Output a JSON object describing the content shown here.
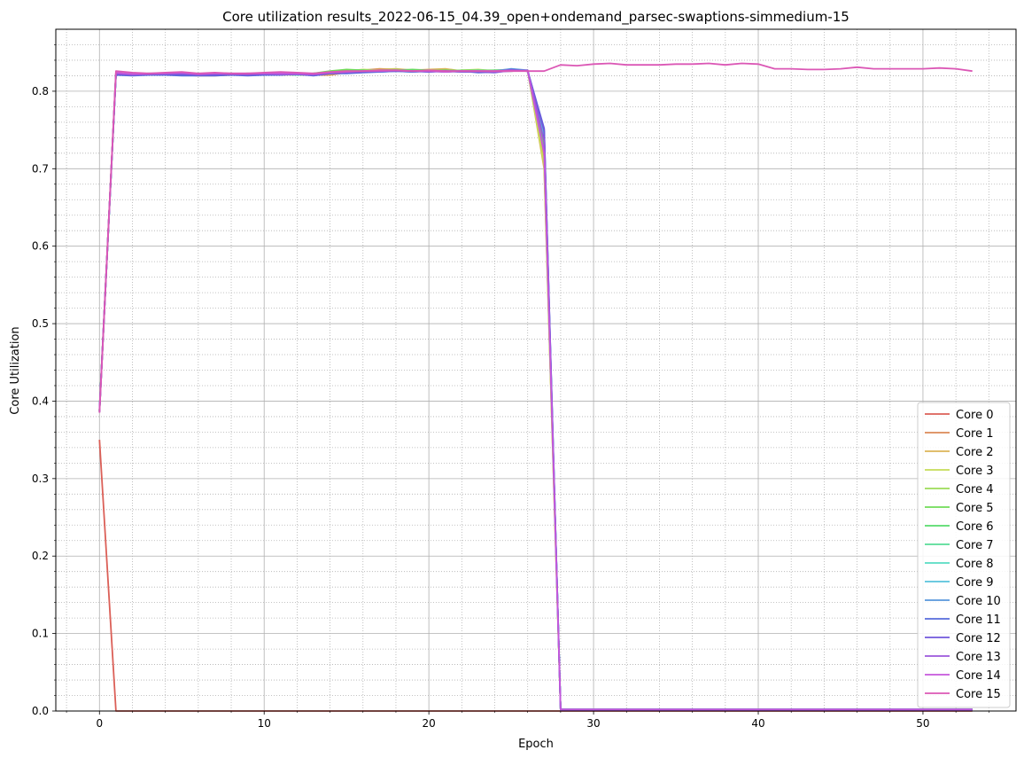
{
  "chart_data": {
    "type": "line",
    "title": "Core utilization results_2022-06-15_04.39_open+ondemand_parsec-swaptions-simmedium-15",
    "xlabel": "Epoch",
    "ylabel": "Core Utilization",
    "xlim": [
      -2.65,
      55.65
    ],
    "ylim": [
      0,
      0.88
    ],
    "xticks": [
      0,
      10,
      20,
      30,
      40,
      50
    ],
    "yticks": [
      0.0,
      0.1,
      0.2,
      0.3,
      0.4,
      0.5,
      0.6,
      0.7,
      0.8
    ],
    "grid": true,
    "minor_grid": true,
    "legend_position": "lower-right",
    "colors": [
      "#db5f57",
      "#db8a57",
      "#dbb557",
      "#c6db57",
      "#9bdb57",
      "#70db57",
      "#57db6c",
      "#57db97",
      "#57dbc2",
      "#57c2db",
      "#5797db",
      "#576cdb",
      "#7057db",
      "#9b57db",
      "#c657db",
      "#db57b5"
    ],
    "series": [
      {
        "name": "Core 0",
        "y": [
          0.35,
          0,
          0,
          0,
          0,
          0,
          0,
          0,
          0,
          0,
          0,
          0,
          0,
          0,
          0,
          0,
          0,
          0,
          0,
          0,
          0,
          0,
          0,
          0,
          0,
          0,
          0,
          0,
          0,
          0,
          0,
          0,
          0,
          0,
          0,
          0,
          0,
          0,
          0,
          0,
          0,
          0,
          0,
          0,
          0,
          0,
          0,
          0,
          0,
          0,
          0,
          0,
          0,
          0
        ]
      },
      {
        "name": "Core 1",
        "y": [
          0.388,
          0.822,
          0.821,
          0.822,
          0.823,
          0.821,
          0.82,
          0.82,
          0.821,
          0.822,
          0.823,
          0.822,
          0.821,
          0.821,
          0.821,
          0.824,
          0.827,
          0.829,
          0.828,
          0.827,
          0.826,
          0.827,
          0.826,
          0.825,
          0.825,
          0.827,
          0.826,
          0.71,
          0.002,
          0.002,
          0.002,
          0.002,
          0.002,
          0.002,
          0.002,
          0.002,
          0.002,
          0.002,
          0.002,
          0.002,
          0.002,
          0.002,
          0.002,
          0.002,
          0.002,
          0.002,
          0.002,
          0.002,
          0.002,
          0.002,
          0.002,
          0.002,
          0.002,
          0.002
        ]
      },
      {
        "name": "Core 2",
        "y": [
          0.389,
          0.824,
          0.822,
          0.821,
          0.822,
          0.823,
          0.822,
          0.821,
          0.822,
          0.823,
          0.822,
          0.823,
          0.822,
          0.823,
          0.822,
          0.826,
          0.827,
          0.828,
          0.829,
          0.827,
          0.828,
          0.829,
          0.826,
          0.827,
          0.826,
          0.826,
          0.827,
          0.7,
          0.002,
          0.002,
          0.002,
          0.002,
          0.002,
          0.002,
          0.002,
          0.002,
          0.002,
          0.002,
          0.002,
          0.002,
          0.002,
          0.002,
          0.002,
          0.002,
          0.002,
          0.002,
          0.002,
          0.002,
          0.002,
          0.002,
          0.002,
          0.002,
          0.002,
          0.002
        ]
      },
      {
        "name": "Core 3",
        "y": [
          0.387,
          0.823,
          0.822,
          0.822,
          0.823,
          0.822,
          0.821,
          0.822,
          0.823,
          0.821,
          0.822,
          0.821,
          0.822,
          0.822,
          0.824,
          0.826,
          0.828,
          0.827,
          0.828,
          0.826,
          0.827,
          0.826,
          0.827,
          0.828,
          0.826,
          0.827,
          0.826,
          0.705,
          0.002,
          0.002,
          0.002,
          0.002,
          0.002,
          0.002,
          0.002,
          0.002,
          0.002,
          0.002,
          0.002,
          0.002,
          0.002,
          0.002,
          0.002,
          0.002,
          0.002,
          0.002,
          0.002,
          0.002,
          0.002,
          0.002,
          0.002,
          0.002,
          0.002,
          0.002
        ]
      },
      {
        "name": "Core 4",
        "y": [
          0.386,
          0.821,
          0.823,
          0.821,
          0.822,
          0.822,
          0.823,
          0.821,
          0.822,
          0.822,
          0.823,
          0.822,
          0.821,
          0.822,
          0.825,
          0.827,
          0.826,
          0.827,
          0.828,
          0.826,
          0.826,
          0.827,
          0.826,
          0.827,
          0.827,
          0.828,
          0.826,
          0.72,
          0.002,
          0.002,
          0.002,
          0.002,
          0.002,
          0.002,
          0.002,
          0.002,
          0.002,
          0.002,
          0.002,
          0.002,
          0.002,
          0.002,
          0.002,
          0.002,
          0.002,
          0.002,
          0.002,
          0.002,
          0.002,
          0.002,
          0.002,
          0.002,
          0.002,
          0.002
        ]
      },
      {
        "name": "Core 5",
        "y": [
          0.388,
          0.822,
          0.821,
          0.822,
          0.823,
          0.821,
          0.822,
          0.822,
          0.821,
          0.822,
          0.822,
          0.823,
          0.822,
          0.823,
          0.826,
          0.828,
          0.827,
          0.826,
          0.827,
          0.828,
          0.827,
          0.826,
          0.827,
          0.827,
          0.826,
          0.827,
          0.826,
          0.73,
          0.002,
          0.002,
          0.002,
          0.002,
          0.002,
          0.002,
          0.002,
          0.002,
          0.002,
          0.002,
          0.002,
          0.002,
          0.002,
          0.002,
          0.002,
          0.002,
          0.002,
          0.002,
          0.002,
          0.002,
          0.002,
          0.002,
          0.002,
          0.002,
          0.002,
          0.002
        ]
      },
      {
        "name": "Core 6",
        "y": [
          0.387,
          0.823,
          0.822,
          0.823,
          0.822,
          0.821,
          0.822,
          0.823,
          0.822,
          0.821,
          0.822,
          0.822,
          0.823,
          0.822,
          0.825,
          0.826,
          0.827,
          0.826,
          0.826,
          0.827,
          0.826,
          0.827,
          0.826,
          0.826,
          0.827,
          0.827,
          0.826,
          0.735,
          0.002,
          0.002,
          0.002,
          0.002,
          0.002,
          0.002,
          0.002,
          0.002,
          0.002,
          0.002,
          0.002,
          0.002,
          0.002,
          0.002,
          0.002,
          0.002,
          0.002,
          0.002,
          0.002,
          0.002,
          0.002,
          0.002,
          0.002,
          0.002,
          0.002,
          0.002
        ]
      },
      {
        "name": "Core 7",
        "y": [
          0.388,
          0.822,
          0.823,
          0.822,
          0.822,
          0.823,
          0.822,
          0.822,
          0.823,
          0.822,
          0.823,
          0.822,
          0.822,
          0.823,
          0.824,
          0.825,
          0.826,
          0.826,
          0.827,
          0.826,
          0.827,
          0.826,
          0.826,
          0.827,
          0.826,
          0.826,
          0.827,
          0.74,
          0.002,
          0.002,
          0.002,
          0.002,
          0.002,
          0.002,
          0.002,
          0.002,
          0.002,
          0.002,
          0.002,
          0.002,
          0.002,
          0.002,
          0.002,
          0.002,
          0.002,
          0.002,
          0.002,
          0.002,
          0.002,
          0.002,
          0.002,
          0.002,
          0.002,
          0.002
        ]
      },
      {
        "name": "Core 8",
        "y": [
          0.386,
          0.821,
          0.822,
          0.822,
          0.821,
          0.822,
          0.823,
          0.822,
          0.822,
          0.823,
          0.822,
          0.822,
          0.821,
          0.822,
          0.823,
          0.825,
          0.825,
          0.826,
          0.827,
          0.826,
          0.826,
          0.825,
          0.826,
          0.826,
          0.825,
          0.827,
          0.826,
          0.742,
          0.002,
          0.002,
          0.002,
          0.002,
          0.002,
          0.002,
          0.002,
          0.002,
          0.002,
          0.002,
          0.002,
          0.002,
          0.002,
          0.002,
          0.002,
          0.002,
          0.002,
          0.002,
          0.002,
          0.002,
          0.002,
          0.002,
          0.002,
          0.002,
          0.002,
          0.002
        ]
      },
      {
        "name": "Core 9",
        "y": [
          0.387,
          0.822,
          0.821,
          0.822,
          0.822,
          0.822,
          0.822,
          0.821,
          0.822,
          0.822,
          0.822,
          0.823,
          0.822,
          0.821,
          0.823,
          0.824,
          0.825,
          0.826,
          0.826,
          0.825,
          0.826,
          0.826,
          0.825,
          0.826,
          0.826,
          0.828,
          0.826,
          0.745,
          0.002,
          0.002,
          0.002,
          0.002,
          0.002,
          0.002,
          0.002,
          0.002,
          0.002,
          0.002,
          0.002,
          0.002,
          0.002,
          0.002,
          0.002,
          0.002,
          0.002,
          0.002,
          0.002,
          0.002,
          0.002,
          0.002,
          0.002,
          0.002,
          0.002,
          0.002
        ]
      },
      {
        "name": "Core 10",
        "y": [
          0.388,
          0.823,
          0.822,
          0.822,
          0.822,
          0.823,
          0.821,
          0.822,
          0.822,
          0.822,
          0.821,
          0.822,
          0.822,
          0.821,
          0.824,
          0.824,
          0.825,
          0.825,
          0.826,
          0.826,
          0.825,
          0.826,
          0.825,
          0.825,
          0.826,
          0.829,
          0.827,
          0.748,
          0.002,
          0.002,
          0.002,
          0.002,
          0.002,
          0.002,
          0.002,
          0.002,
          0.002,
          0.002,
          0.002,
          0.002,
          0.002,
          0.002,
          0.002,
          0.002,
          0.002,
          0.002,
          0.002,
          0.002,
          0.002,
          0.002,
          0.002,
          0.002,
          0.002,
          0.002
        ]
      },
      {
        "name": "Core 11",
        "y": [
          0.386,
          0.821,
          0.82,
          0.821,
          0.821,
          0.82,
          0.82,
          0.82,
          0.821,
          0.82,
          0.821,
          0.821,
          0.822,
          0.82,
          0.823,
          0.823,
          0.824,
          0.825,
          0.826,
          0.825,
          0.826,
          0.825,
          0.826,
          0.824,
          0.825,
          0.828,
          0.826,
          0.752,
          0.002,
          0.002,
          0.002,
          0.002,
          0.002,
          0.002,
          0.002,
          0.002,
          0.002,
          0.002,
          0.002,
          0.002,
          0.002,
          0.002,
          0.002,
          0.002,
          0.002,
          0.002,
          0.002,
          0.002,
          0.002,
          0.002,
          0.002,
          0.002,
          0.002,
          0.002
        ]
      },
      {
        "name": "Core 12",
        "y": [
          0.387,
          0.822,
          0.821,
          0.822,
          0.822,
          0.822,
          0.821,
          0.821,
          0.822,
          0.821,
          0.822,
          0.822,
          0.822,
          0.821,
          0.823,
          0.824,
          0.825,
          0.826,
          0.826,
          0.826,
          0.825,
          0.826,
          0.825,
          0.825,
          0.824,
          0.827,
          0.826,
          0.75,
          0.002,
          0.002,
          0.002,
          0.002,
          0.002,
          0.002,
          0.002,
          0.002,
          0.002,
          0.002,
          0.002,
          0.002,
          0.002,
          0.002,
          0.002,
          0.002,
          0.002,
          0.002,
          0.002,
          0.002,
          0.002,
          0.002,
          0.002,
          0.002,
          0.002,
          0.002
        ]
      },
      {
        "name": "Core 13",
        "y": [
          0.388,
          0.823,
          0.822,
          0.822,
          0.823,
          0.823,
          0.822,
          0.823,
          0.822,
          0.822,
          0.823,
          0.822,
          0.822,
          0.822,
          0.824,
          0.825,
          0.826,
          0.827,
          0.827,
          0.826,
          0.826,
          0.826,
          0.826,
          0.826,
          0.825,
          0.826,
          0.827,
          0.735,
          0.002,
          0.002,
          0.002,
          0.002,
          0.002,
          0.002,
          0.002,
          0.002,
          0.002,
          0.002,
          0.002,
          0.002,
          0.002,
          0.002,
          0.002,
          0.002,
          0.002,
          0.002,
          0.002,
          0.002,
          0.002,
          0.002,
          0.002,
          0.002,
          0.002,
          0.002
        ]
      },
      {
        "name": "Core 14",
        "y": [
          0.386,
          0.824,
          0.822,
          0.823,
          0.823,
          0.824,
          0.822,
          0.823,
          0.823,
          0.823,
          0.823,
          0.823,
          0.823,
          0.822,
          0.824,
          0.825,
          0.826,
          0.826,
          0.827,
          0.826,
          0.826,
          0.825,
          0.826,
          0.826,
          0.826,
          0.827,
          0.826,
          0.72,
          0.002,
          0.002,
          0.002,
          0.002,
          0.002,
          0.002,
          0.002,
          0.002,
          0.002,
          0.002,
          0.002,
          0.002,
          0.002,
          0.002,
          0.002,
          0.002,
          0.002,
          0.002,
          0.002,
          0.002,
          0.002,
          0.002,
          0.002,
          0.002,
          0.002,
          0.002
        ]
      },
      {
        "name": "Core 15",
        "y": [
          0.385,
          0.826,
          0.824,
          0.823,
          0.824,
          0.825,
          0.823,
          0.824,
          0.823,
          0.823,
          0.824,
          0.825,
          0.824,
          0.823,
          0.825,
          0.826,
          0.826,
          0.827,
          0.827,
          0.826,
          0.827,
          0.826,
          0.826,
          0.826,
          0.826,
          0.826,
          0.826,
          0.826,
          0.834,
          0.833,
          0.835,
          0.836,
          0.834,
          0.834,
          0.834,
          0.835,
          0.835,
          0.836,
          0.834,
          0.836,
          0.835,
          0.829,
          0.829,
          0.828,
          0.828,
          0.829,
          0.831,
          0.829,
          0.829,
          0.829,
          0.829,
          0.83,
          0.829,
          0.826
        ]
      }
    ]
  }
}
